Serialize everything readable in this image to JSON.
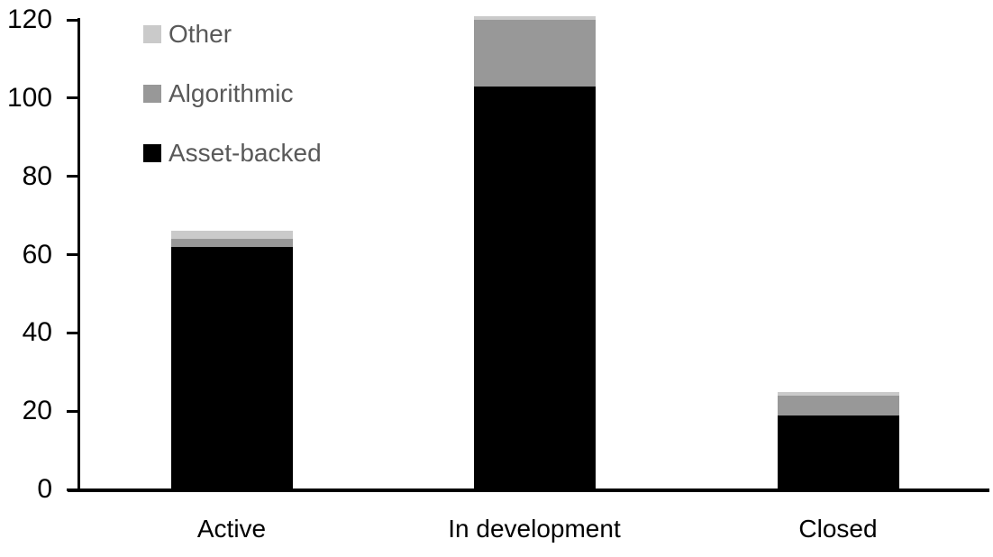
{
  "chart_data": {
    "type": "bar",
    "stacked": true,
    "title": "",
    "xlabel": "",
    "ylabel": "",
    "categories": [
      "Active",
      "In development",
      "Closed"
    ],
    "series": [
      {
        "name": "Asset-backed",
        "color": "#000000",
        "values": [
          62,
          103,
          19
        ]
      },
      {
        "name": "Algorithmic",
        "color": "#989898",
        "values": [
          2,
          17,
          5
        ]
      },
      {
        "name": "Other",
        "color": "#CACACA",
        "values": [
          2,
          1,
          1
        ]
      }
    ],
    "y_axis": {
      "min": 0,
      "max": 120,
      "ticks": [
        0,
        20,
        40,
        60,
        80,
        100,
        120
      ]
    },
    "grid": false,
    "legend": {
      "position": "top-left",
      "items": [
        {
          "label": "Other",
          "color": "#CACACA"
        },
        {
          "label": "Algorithmic",
          "color": "#989898"
        },
        {
          "label": "Asset-backed",
          "color": "#000000"
        }
      ]
    },
    "colors": {
      "axis": "#000000",
      "tick_labels": "#000000",
      "legend_text": "#595959",
      "background": "#FFFFFF"
    }
  }
}
